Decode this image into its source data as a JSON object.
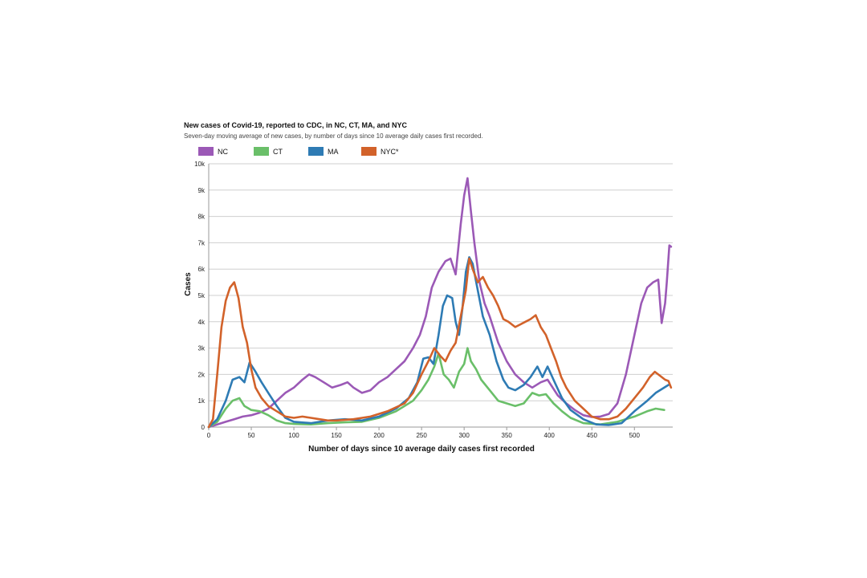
{
  "chart_data": {
    "type": "line",
    "title": "New cases of Covid-19, reported to CDC, in NC, CT, MA, and NYC",
    "subtitle": "Seven-day moving average of new cases, by number of days since 10 average daily cases first recorded.",
    "xlabel": "Number of days since 10 average daily cases first recorded",
    "ylabel": "Cases",
    "xlim": [
      0,
      545
    ],
    "ylim": [
      0,
      10000
    ],
    "x_ticks": [
      0,
      50,
      100,
      150,
      200,
      250,
      300,
      350,
      400,
      450,
      500
    ],
    "y_ticks": [
      0,
      1000,
      2000,
      3000,
      4000,
      5000,
      6000,
      7000,
      8000,
      9000,
      10000
    ],
    "y_tick_labels": [
      "0",
      "1k",
      "2k",
      "3k",
      "4k",
      "5k",
      "6k",
      "7k",
      "8k",
      "9k",
      "10k"
    ],
    "grid": true,
    "legend_position": "top-left",
    "series": [
      {
        "name": "NC",
        "color": "#9b59b6",
        "points": [
          [
            0,
            0
          ],
          [
            10,
            100
          ],
          [
            20,
            200
          ],
          [
            30,
            300
          ],
          [
            40,
            400
          ],
          [
            50,
            450
          ],
          [
            60,
            550
          ],
          [
            70,
            700
          ],
          [
            80,
            1000
          ],
          [
            90,
            1300
          ],
          [
            100,
            1500
          ],
          [
            110,
            1800
          ],
          [
            118,
            2000
          ],
          [
            125,
            1900
          ],
          [
            135,
            1700
          ],
          [
            145,
            1500
          ],
          [
            155,
            1600
          ],
          [
            163,
            1700
          ],
          [
            170,
            1500
          ],
          [
            180,
            1300
          ],
          [
            190,
            1400
          ],
          [
            200,
            1700
          ],
          [
            210,
            1900
          ],
          [
            220,
            2200
          ],
          [
            230,
            2500
          ],
          [
            240,
            3000
          ],
          [
            248,
            3500
          ],
          [
            255,
            4200
          ],
          [
            262,
            5300
          ],
          [
            270,
            5900
          ],
          [
            278,
            6300
          ],
          [
            284,
            6400
          ],
          [
            290,
            5800
          ],
          [
            296,
            7700
          ],
          [
            300,
            8800
          ],
          [
            304,
            9450
          ],
          [
            308,
            8200
          ],
          [
            312,
            7000
          ],
          [
            318,
            5500
          ],
          [
            324,
            4700
          ],
          [
            330,
            4200
          ],
          [
            340,
            3200
          ],
          [
            350,
            2500
          ],
          [
            360,
            2000
          ],
          [
            370,
            1700
          ],
          [
            380,
            1500
          ],
          [
            390,
            1700
          ],
          [
            398,
            1800
          ],
          [
            410,
            1200
          ],
          [
            420,
            900
          ],
          [
            430,
            650
          ],
          [
            440,
            450
          ],
          [
            450,
            380
          ],
          [
            460,
            400
          ],
          [
            470,
            500
          ],
          [
            480,
            900
          ],
          [
            490,
            2000
          ],
          [
            500,
            3500
          ],
          [
            508,
            4700
          ],
          [
            515,
            5300
          ],
          [
            522,
            5500
          ],
          [
            528,
            5600
          ],
          [
            532,
            3950
          ],
          [
            536,
            4700
          ],
          [
            538,
            5500
          ],
          [
            541,
            6900
          ],
          [
            543,
            6850
          ]
        ]
      },
      {
        "name": "CT",
        "color": "#6abf69",
        "points": [
          [
            0,
            0
          ],
          [
            10,
            200
          ],
          [
            20,
            700
          ],
          [
            28,
            1000
          ],
          [
            36,
            1100
          ],
          [
            42,
            800
          ],
          [
            50,
            650
          ],
          [
            60,
            600
          ],
          [
            70,
            450
          ],
          [
            80,
            250
          ],
          [
            90,
            150
          ],
          [
            100,
            120
          ],
          [
            120,
            100
          ],
          [
            140,
            150
          ],
          [
            160,
            180
          ],
          [
            180,
            200
          ],
          [
            200,
            350
          ],
          [
            220,
            600
          ],
          [
            240,
            1000
          ],
          [
            250,
            1400
          ],
          [
            258,
            1800
          ],
          [
            265,
            2300
          ],
          [
            270,
            2800
          ],
          [
            276,
            2000
          ],
          [
            282,
            1800
          ],
          [
            288,
            1500
          ],
          [
            294,
            2100
          ],
          [
            300,
            2400
          ],
          [
            304,
            3000
          ],
          [
            308,
            2500
          ],
          [
            314,
            2200
          ],
          [
            320,
            1800
          ],
          [
            330,
            1400
          ],
          [
            340,
            1000
          ],
          [
            350,
            900
          ],
          [
            360,
            800
          ],
          [
            370,
            900
          ],
          [
            380,
            1300
          ],
          [
            388,
            1200
          ],
          [
            396,
            1250
          ],
          [
            405,
            900
          ],
          [
            415,
            600
          ],
          [
            425,
            350
          ],
          [
            440,
            150
          ],
          [
            460,
            100
          ],
          [
            480,
            200
          ],
          [
            500,
            400
          ],
          [
            515,
            600
          ],
          [
            525,
            700
          ],
          [
            535,
            650
          ]
        ]
      },
      {
        "name": "MA",
        "color": "#2e7bb4",
        "points": [
          [
            0,
            0
          ],
          [
            10,
            300
          ],
          [
            20,
            1000
          ],
          [
            28,
            1800
          ],
          [
            36,
            1900
          ],
          [
            42,
            1700
          ],
          [
            48,
            2450
          ],
          [
            55,
            2100
          ],
          [
            62,
            1700
          ],
          [
            70,
            1300
          ],
          [
            80,
            800
          ],
          [
            90,
            350
          ],
          [
            100,
            200
          ],
          [
            120,
            150
          ],
          [
            140,
            250
          ],
          [
            160,
            300
          ],
          [
            180,
            250
          ],
          [
            200,
            400
          ],
          [
            220,
            700
          ],
          [
            235,
            1100
          ],
          [
            245,
            1700
          ],
          [
            252,
            2600
          ],
          [
            258,
            2650
          ],
          [
            264,
            2400
          ],
          [
            270,
            3500
          ],
          [
            275,
            4600
          ],
          [
            280,
            5000
          ],
          [
            286,
            4900
          ],
          [
            290,
            4000
          ],
          [
            294,
            3500
          ],
          [
            298,
            4500
          ],
          [
            302,
            5900
          ],
          [
            306,
            6450
          ],
          [
            310,
            6200
          ],
          [
            316,
            5200
          ],
          [
            322,
            4200
          ],
          [
            330,
            3500
          ],
          [
            338,
            2500
          ],
          [
            346,
            1800
          ],
          [
            352,
            1500
          ],
          [
            360,
            1400
          ],
          [
            370,
            1600
          ],
          [
            378,
            1900
          ],
          [
            386,
            2300
          ],
          [
            392,
            1900
          ],
          [
            398,
            2300
          ],
          [
            405,
            1800
          ],
          [
            415,
            1100
          ],
          [
            425,
            650
          ],
          [
            440,
            300
          ],
          [
            455,
            100
          ],
          [
            470,
            80
          ],
          [
            485,
            150
          ],
          [
            500,
            600
          ],
          [
            515,
            1000
          ],
          [
            525,
            1300
          ],
          [
            540,
            1600
          ]
        ]
      },
      {
        "name": "NYC*",
        "color": "#d2622a",
        "points": [
          [
            0,
            0
          ],
          [
            5,
            300
          ],
          [
            10,
            2000
          ],
          [
            15,
            3800
          ],
          [
            20,
            4800
          ],
          [
            25,
            5300
          ],
          [
            30,
            5500
          ],
          [
            35,
            4900
          ],
          [
            40,
            3800
          ],
          [
            45,
            3200
          ],
          [
            50,
            2200
          ],
          [
            55,
            1500
          ],
          [
            62,
            1100
          ],
          [
            70,
            800
          ],
          [
            80,
            600
          ],
          [
            90,
            400
          ],
          [
            100,
            350
          ],
          [
            110,
            400
          ],
          [
            120,
            350
          ],
          [
            130,
            300
          ],
          [
            140,
            250
          ],
          [
            150,
            250
          ],
          [
            170,
            300
          ],
          [
            190,
            400
          ],
          [
            210,
            600
          ],
          [
            230,
            900
          ],
          [
            240,
            1300
          ],
          [
            250,
            2000
          ],
          [
            258,
            2500
          ],
          [
            265,
            3000
          ],
          [
            272,
            2700
          ],
          [
            278,
            2500
          ],
          [
            284,
            2900
          ],
          [
            290,
            3200
          ],
          [
            296,
            4200
          ],
          [
            302,
            5200
          ],
          [
            306,
            6400
          ],
          [
            310,
            6000
          ],
          [
            316,
            5500
          ],
          [
            322,
            5700
          ],
          [
            328,
            5300
          ],
          [
            334,
            5000
          ],
          [
            340,
            4600
          ],
          [
            346,
            4100
          ],
          [
            352,
            4000
          ],
          [
            360,
            3800
          ],
          [
            366,
            3900
          ],
          [
            372,
            4000
          ],
          [
            378,
            4100
          ],
          [
            384,
            4250
          ],
          [
            390,
            3800
          ],
          [
            396,
            3500
          ],
          [
            402,
            3000
          ],
          [
            408,
            2500
          ],
          [
            414,
            1900
          ],
          [
            420,
            1500
          ],
          [
            430,
            1000
          ],
          [
            440,
            700
          ],
          [
            450,
            400
          ],
          [
            460,
            300
          ],
          [
            470,
            300
          ],
          [
            480,
            400
          ],
          [
            490,
            700
          ],
          [
            500,
            1100
          ],
          [
            510,
            1500
          ],
          [
            518,
            1900
          ],
          [
            524,
            2100
          ],
          [
            530,
            1950
          ],
          [
            536,
            1800
          ],
          [
            540,
            1750
          ],
          [
            543,
            1500
          ]
        ]
      }
    ]
  }
}
